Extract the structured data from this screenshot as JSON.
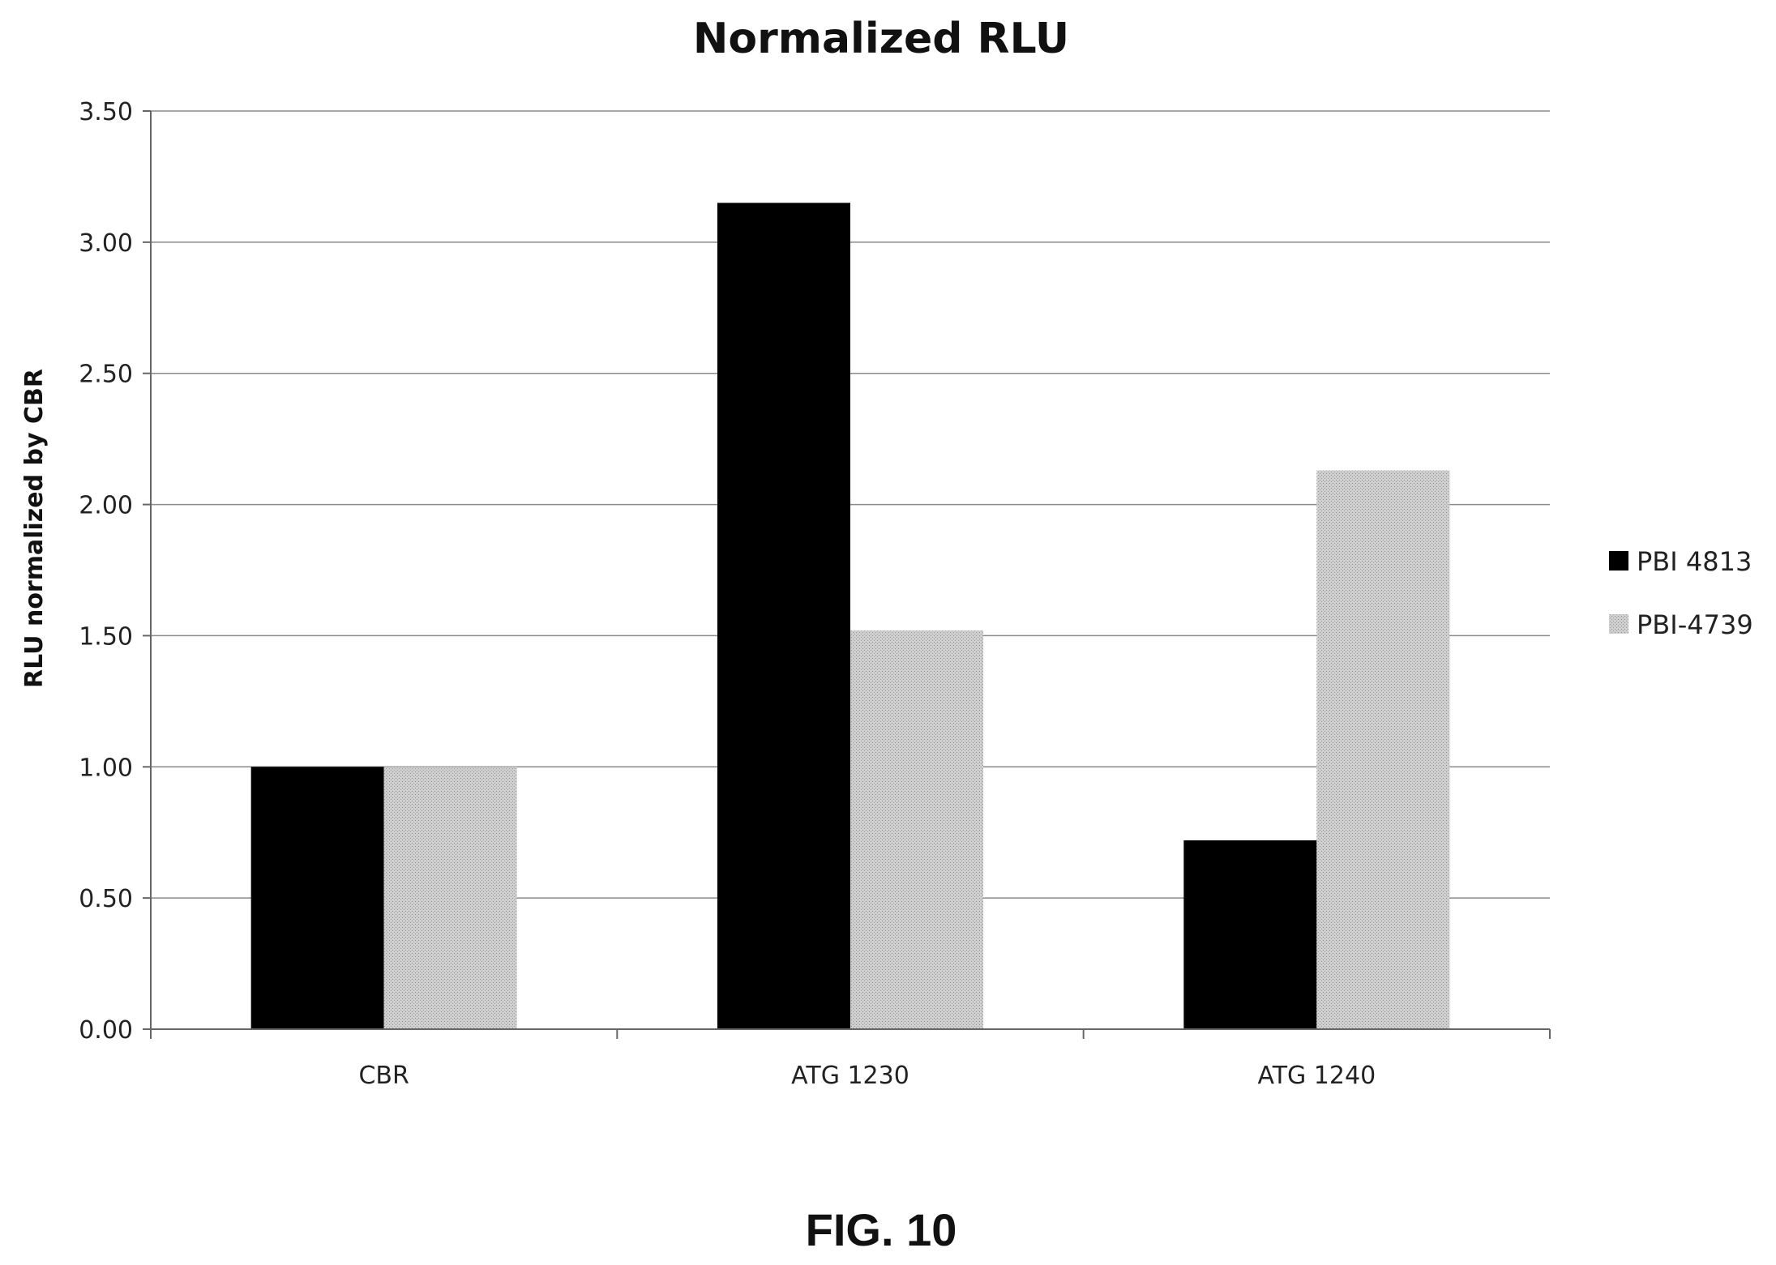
{
  "chart_data": {
    "type": "bar",
    "title": "Normalized RLU",
    "xlabel": "",
    "ylabel": "RLU normalized by CBR",
    "categories": [
      "CBR",
      "ATG 1230",
      "ATG 1240"
    ],
    "series": [
      {
        "name": "PBI 4813",
        "values": [
          1.0,
          3.15,
          0.72
        ],
        "color": "#000000"
      },
      {
        "name": "PBI-4739",
        "values": [
          1.0,
          1.52,
          2.13
        ],
        "color": "#c8c8c8"
      }
    ],
    "ylim": [
      0,
      3.5
    ],
    "yticks": [
      "0.00",
      "0.50",
      "1.00",
      "1.50",
      "2.00",
      "2.50",
      "3.00",
      "3.50"
    ],
    "grid": true,
    "legend_position": "right"
  },
  "figure_caption": "FIG. 10"
}
